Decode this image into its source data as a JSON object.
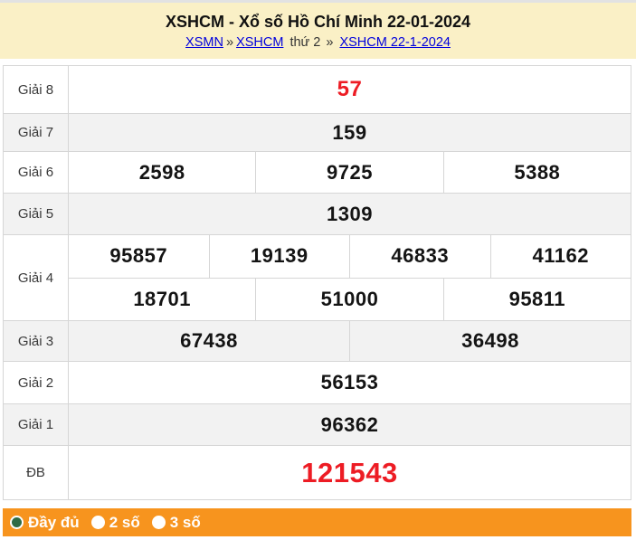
{
  "header": {
    "title": "XSHCM - Xổ số Hồ Chí Minh 22-01-2024",
    "breadcrumb": {
      "link1": "XSMN",
      "sep1": "»",
      "link2": "XSHCM",
      "mid": "thứ 2",
      "sep2": "»",
      "link3": "XSHCM 22-1-2024"
    }
  },
  "table": {
    "rows": [
      {
        "label": "Giải 8",
        "style": "red-md",
        "lines": [
          [
            "57"
          ]
        ]
      },
      {
        "label": "Giải 7",
        "style": "",
        "lines": [
          [
            "159"
          ]
        ]
      },
      {
        "label": "Giải 6",
        "style": "",
        "lines": [
          [
            "2598",
            "9725",
            "5388"
          ]
        ]
      },
      {
        "label": "Giải 5",
        "style": "",
        "lines": [
          [
            "1309"
          ]
        ]
      },
      {
        "label": "Giải 4",
        "style": "",
        "lines": [
          [
            "95857",
            "19139",
            "46833",
            "41162"
          ],
          [
            "18701",
            "51000",
            "95811"
          ]
        ]
      },
      {
        "label": "Giải 3",
        "style": "",
        "lines": [
          [
            "67438",
            "36498"
          ]
        ]
      },
      {
        "label": "Giải 2",
        "style": "",
        "lines": [
          [
            "56153"
          ]
        ]
      },
      {
        "label": "Giải 1",
        "style": "",
        "lines": [
          [
            "96362"
          ]
        ]
      },
      {
        "label": "ĐB",
        "style": "red-lg",
        "lines": [
          [
            "121543"
          ]
        ]
      }
    ]
  },
  "footer": {
    "options": [
      {
        "label": "Đầy đủ",
        "selected": true
      },
      {
        "label": "2 số",
        "selected": false
      },
      {
        "label": "3 số",
        "selected": false
      }
    ]
  },
  "colors": {
    "header_bg": "#faf0c6",
    "accent_orange": "#f7941e",
    "number_red": "#ed1c24",
    "link_blue": "#0000dd",
    "zebra_gray": "#f2f2f2",
    "radio_green": "#2e6b45"
  }
}
